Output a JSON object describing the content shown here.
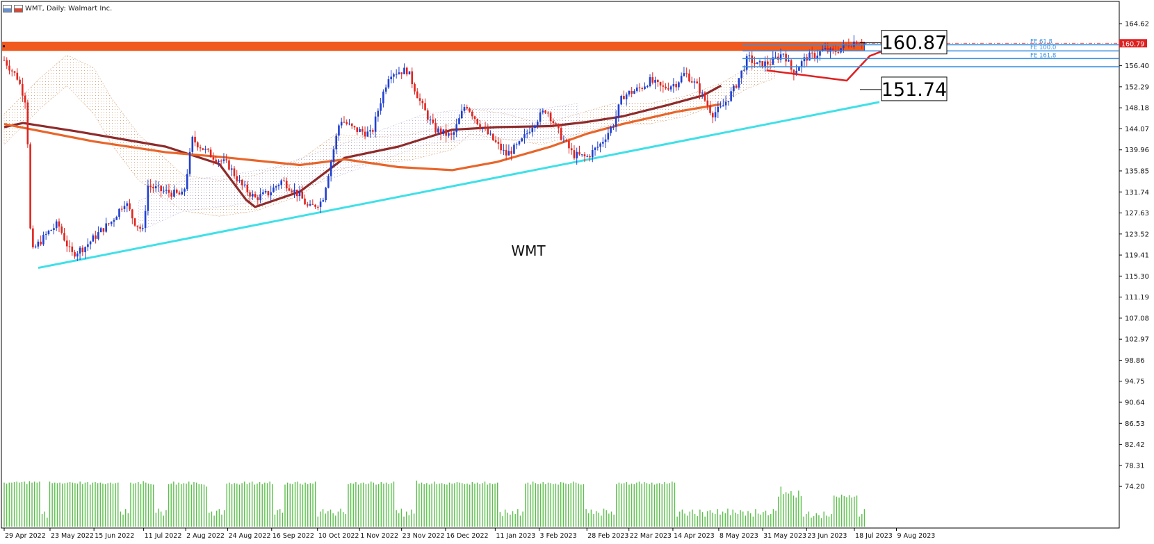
{
  "window": {
    "title": "WMT, Daily:  Walmart Inc.",
    "icons": [
      "chart-type-icon",
      "chart-settings-icon"
    ]
  },
  "chart_data": {
    "type": "candlestick",
    "symbol_label": "WMT",
    "x_tick_labels": [
      "29 Apr 2022",
      "23 May 2022",
      "15 Jun 2022",
      "11 Jul 2022",
      "2 Aug 2022",
      "24 Aug 2022",
      "16 Sep 2022",
      "10 Oct 2022",
      "1 Nov 2022",
      "23 Nov 2022",
      "16 Dec 2022",
      "11 Jan 2023",
      "3 Feb 2023",
      "28 Feb 2023",
      "22 Mar 2023",
      "14 Apr 2023",
      "8 May 2023",
      "31 May 2023",
      "23 Jun 2023",
      "18 Jul 2023",
      "9 Aug 2023"
    ],
    "y_tick_labels": [
      "164.62",
      "156.40",
      "152.29",
      "148.18",
      "144.07",
      "139.96",
      "135.85",
      "131.74",
      "127.63",
      "123.52",
      "119.41",
      "115.30",
      "111.19",
      "107.08",
      "102.97",
      "98.86",
      "94.75",
      "90.64",
      "86.53",
      "82.42",
      "78.31",
      "74.20"
    ],
    "ylim": [
      71.5,
      166.8
    ],
    "price_ticks_top_value": 164.62,
    "price_tick_step": 4.11,
    "current_price_label": "160.79",
    "current_price": 160.79,
    "annotations": {
      "resistance_label": "160.87",
      "resistance_value": 160.87,
      "support_label": "151.74",
      "support_value": 151.74
    },
    "fibonacci_levels": [
      {
        "label": "FE 61.8",
        "value": 160.5
      },
      {
        "label": "FE 100.0",
        "value": 159.3
      },
      {
        "label": "FE 161.8",
        "value": 157.8
      },
      {
        "label": "",
        "value": 156.2
      }
    ],
    "resistance_zone": {
      "low": 159.3,
      "high": 161.1
    },
    "trendline": {
      "start": {
        "x": "6 May 2022",
        "y": 116.9
      },
      "end": {
        "x": "31 Jul 2023",
        "y": 149.3
      }
    },
    "moving_averages": [
      {
        "color": "#8e2b2b",
        "points": [
          [
            0,
            144.4
          ],
          [
            0.021,
            145.2
          ],
          [
            0.08,
            143.6
          ],
          [
            0.18,
            140.6
          ],
          [
            0.24,
            137.2
          ],
          [
            0.27,
            130.2
          ],
          [
            0.28,
            128.8
          ],
          [
            0.33,
            131.8
          ],
          [
            0.38,
            138.4
          ],
          [
            0.44,
            140.6
          ],
          [
            0.5,
            143.9
          ],
          [
            0.55,
            144.4
          ],
          [
            0.61,
            144.6
          ],
          [
            0.65,
            145.4
          ],
          [
            0.69,
            146.5
          ],
          [
            0.74,
            148.7
          ],
          [
            0.78,
            150.6
          ],
          [
            0.8,
            152.5
          ]
        ]
      },
      {
        "color": "#e8652a",
        "points": [
          [
            0,
            145.0
          ],
          [
            0.1,
            141.6
          ],
          [
            0.18,
            139.5
          ],
          [
            0.24,
            138.6
          ],
          [
            0.33,
            137.0
          ],
          [
            0.38,
            138.1
          ],
          [
            0.44,
            136.6
          ],
          [
            0.5,
            136.0
          ],
          [
            0.55,
            137.6
          ],
          [
            0.61,
            140.6
          ],
          [
            0.65,
            143.1
          ],
          [
            0.69,
            145.0
          ],
          [
            0.75,
            147.4
          ],
          [
            0.8,
            148.9
          ]
        ]
      }
    ],
    "red_swing": [
      [
        "2 Jun 2023",
        155.5
      ],
      [
        "14 Jul 2023",
        153.5
      ],
      [
        "26 Jul 2023",
        158.3
      ],
      [
        "2 Aug 2023",
        159.3
      ]
    ],
    "volume": {
      "max": 100,
      "values": [
        88,
        86,
        88,
        88,
        89,
        90,
        88,
        89,
        90,
        85,
        91,
        88,
        90,
        88,
        90,
        25,
        30,
        18,
        90,
        87,
        88,
        87,
        88,
        86,
        87,
        88,
        89,
        88,
        87,
        86,
        90,
        85,
        88,
        89,
        84,
        88,
        89,
        87,
        88,
        86,
        85,
        87,
        88,
        86,
        87,
        88,
        30,
        24,
        35,
        27,
        88,
        86,
        87,
        89,
        85,
        91,
        88,
        86,
        85,
        84,
        28,
        36,
        30,
        22,
        33,
        85,
        86,
        90,
        84,
        88,
        85,
        87,
        86,
        90,
        84,
        89,
        88,
        85,
        85,
        84,
        80,
        28,
        30,
        22,
        32,
        35,
        24,
        33,
        86,
        88,
        85,
        87,
        86,
        84,
        87,
        90,
        85,
        88,
        90,
        84,
        86,
        89,
        85,
        88,
        87,
        90,
        85,
        24,
        33,
        35,
        28,
        84,
        88,
        86,
        85,
        89,
        90,
        86,
        84,
        88,
        85,
        87,
        86,
        90,
        20,
        30,
        35,
        26,
        31,
        34,
        27,
        22,
        30,
        36,
        29,
        25,
        85,
        87,
        86,
        89,
        84,
        87,
        88,
        85,
        86,
        90,
        88,
        84,
        85,
        89,
        86,
        88,
        85,
        87,
        90,
        33,
        27,
        36,
        20,
        30,
        23,
        34,
        26,
        92,
        86,
        88,
        85,
        87,
        84,
        86,
        90,
        85,
        86,
        87,
        85,
        84,
        88,
        86,
        87,
        89,
        88,
        87,
        85,
        86,
        84,
        89,
        86,
        88,
        85,
        87,
        90,
        84,
        87,
        85,
        86,
        88,
        29,
        21,
        34,
        28,
        24,
        31,
        25,
        35,
        22,
        30,
        86,
        88,
        84,
        90,
        87,
        85,
        86,
        89,
        85,
        88,
        87,
        85,
        86,
        84,
        89,
        88,
        86,
        85,
        87,
        90,
        88,
        86,
        84,
        85,
        35,
        27,
        34,
        25,
        31,
        28,
        22,
        36,
        33,
        26,
        30,
        24,
        85,
        88,
        86,
        87,
        89,
        84,
        86,
        85,
        88,
        90,
        86,
        89,
        87,
        85,
        88,
        84,
        86,
        87,
        85,
        89,
        86,
        87,
        90,
        88,
        20,
        30,
        34,
        26,
        22,
        30,
        34,
        25,
        21,
        34,
        29,
        20,
        31,
        33,
        28,
        25,
        35,
        24,
        30,
        27,
        36,
        23,
        34,
        28,
        25,
        33,
        30,
        22,
        31,
        27,
        20,
        35,
        26,
        24,
        29,
        32,
        23,
        25,
        35,
        32,
        60,
        80,
        65,
        69,
        66,
        71,
        62,
        58,
        72,
        61,
        20,
        25,
        30,
        18,
        21,
        27,
        23,
        17,
        30,
        22,
        20,
        25,
        62,
        60,
        58,
        64,
        61,
        59,
        63,
        58,
        60,
        62,
        20,
        25,
        35
      ]
    },
    "candles_summary": "daily OHLC series from 29 Apr 2022 to 11 Aug 2023",
    "colors": {
      "bull": "#1f3fd0",
      "bear": "#e0241e",
      "trendline": "#3fe0e8",
      "resistance_zone": "#f05a1e",
      "fibo": "#3a8fe0",
      "cloud_a": "#d4a27a",
      "cloud_b": "#a8a8d0",
      "volume": "#5cbf4c"
    }
  }
}
